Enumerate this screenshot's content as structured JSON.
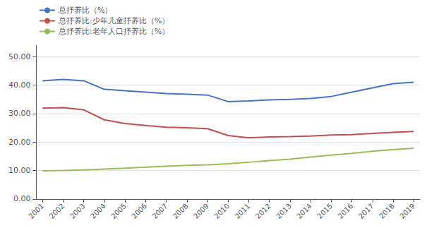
{
  "chart_data": {
    "type": "line",
    "x": [
      2001,
      2002,
      2003,
      2004,
      2005,
      2006,
      2007,
      2008,
      2009,
      2010,
      2011,
      2012,
      2013,
      2014,
      2015,
      2016,
      2017,
      2018,
      2019
    ],
    "series": [
      {
        "name": "总抒养比（%）",
        "color": "#4472C4",
        "values": [
          41.5,
          42.0,
          41.5,
          38.5,
          38.0,
          37.5,
          37.0,
          36.8,
          36.5,
          34.2,
          34.4,
          34.8,
          35.0,
          35.3,
          36.0,
          37.5,
          39.0,
          40.5,
          41.0
        ]
      },
      {
        "name": "总抒养比:少年儿童抒养比（%）",
        "color": "#C0504D",
        "values": [
          31.9,
          32.1,
          31.3,
          27.8,
          26.5,
          25.8,
          25.2,
          25.0,
          24.7,
          22.3,
          21.5,
          21.8,
          21.9,
          22.1,
          22.5,
          22.6,
          23.0,
          23.4,
          23.7
        ]
      },
      {
        "name": "总抒养比:老年人口抒养比（%）",
        "color": "#9BBB59",
        "values": [
          9.9,
          10.0,
          10.2,
          10.5,
          10.8,
          11.2,
          11.5,
          11.8,
          12.0,
          12.4,
          12.9,
          13.5,
          14.0,
          14.7,
          15.4,
          16.0,
          16.8,
          17.3,
          17.8
        ]
      }
    ],
    "xlim": [
      2000.7,
      2019.3
    ],
    "xticks": [
      2001,
      2002,
      2003,
      2004,
      2005,
      2006,
      2007,
      2008,
      2009,
      2010,
      2011,
      2012,
      2013,
      2014,
      2015,
      2016,
      2017,
      2018,
      2019
    ],
    "ylim": [
      0,
      54
    ],
    "yticks": [
      {
        "value": 0,
        "label": "0.00"
      },
      {
        "value": 10,
        "label": "10.00"
      },
      {
        "value": 20,
        "label": "20.00"
      },
      {
        "value": 30,
        "label": "30.00"
      },
      {
        "value": 40,
        "label": "40.00"
      },
      {
        "value": 50,
        "label": "50.00"
      }
    ],
    "grid": true,
    "legend": "upper left"
  }
}
